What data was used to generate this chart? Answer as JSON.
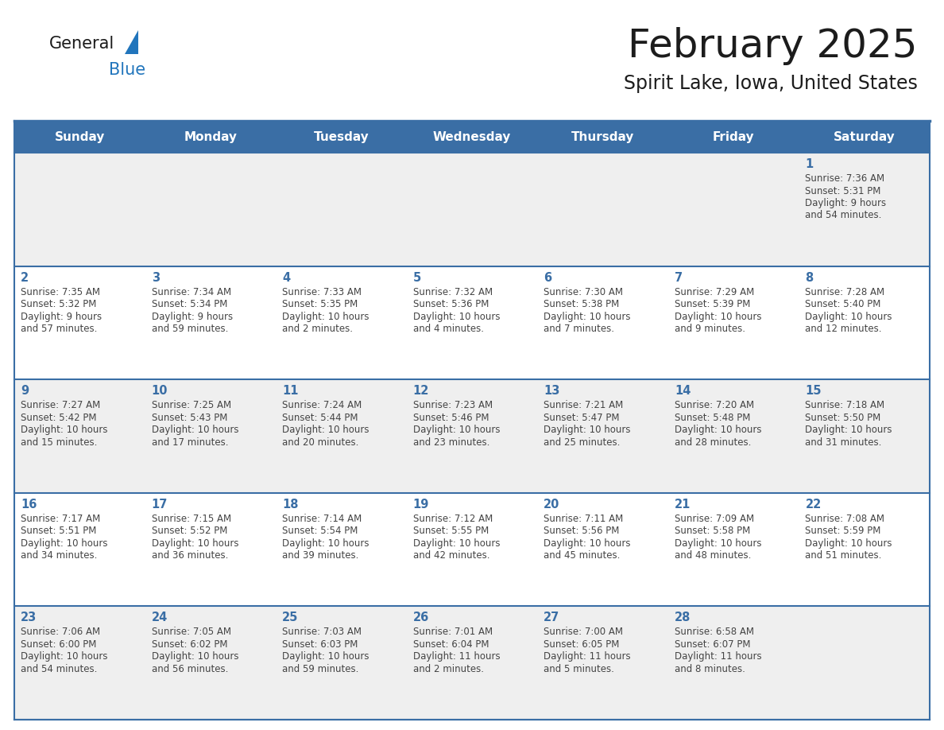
{
  "title": "February 2025",
  "subtitle": "Spirit Lake, Iowa, United States",
  "days_of_week": [
    "Sunday",
    "Monday",
    "Tuesday",
    "Wednesday",
    "Thursday",
    "Friday",
    "Saturday"
  ],
  "header_bg": "#3A6EA5",
  "header_text": "#FFFFFF",
  "cell_bg_odd": "#EFEFEF",
  "cell_bg_even": "#FFFFFF",
  "cell_border": "#3A6EA5",
  "day_num_color": "#3A6EA5",
  "info_color": "#444444",
  "logo_general_color": "#1A1A1A",
  "logo_blue_color": "#2175BC",
  "calendar_data": [
    {
      "day": 1,
      "col": 6,
      "row": 0,
      "sunrise": "7:36 AM",
      "sunset": "5:31 PM",
      "daylight_h": "9 hours",
      "daylight_m": "and 54 minutes."
    },
    {
      "day": 2,
      "col": 0,
      "row": 1,
      "sunrise": "7:35 AM",
      "sunset": "5:32 PM",
      "daylight_h": "9 hours",
      "daylight_m": "and 57 minutes."
    },
    {
      "day": 3,
      "col": 1,
      "row": 1,
      "sunrise": "7:34 AM",
      "sunset": "5:34 PM",
      "daylight_h": "9 hours",
      "daylight_m": "and 59 minutes."
    },
    {
      "day": 4,
      "col": 2,
      "row": 1,
      "sunrise": "7:33 AM",
      "sunset": "5:35 PM",
      "daylight_h": "10 hours",
      "daylight_m": "and 2 minutes."
    },
    {
      "day": 5,
      "col": 3,
      "row": 1,
      "sunrise": "7:32 AM",
      "sunset": "5:36 PM",
      "daylight_h": "10 hours",
      "daylight_m": "and 4 minutes."
    },
    {
      "day": 6,
      "col": 4,
      "row": 1,
      "sunrise": "7:30 AM",
      "sunset": "5:38 PM",
      "daylight_h": "10 hours",
      "daylight_m": "and 7 minutes."
    },
    {
      "day": 7,
      "col": 5,
      "row": 1,
      "sunrise": "7:29 AM",
      "sunset": "5:39 PM",
      "daylight_h": "10 hours",
      "daylight_m": "and 9 minutes."
    },
    {
      "day": 8,
      "col": 6,
      "row": 1,
      "sunrise": "7:28 AM",
      "sunset": "5:40 PM",
      "daylight_h": "10 hours",
      "daylight_m": "and 12 minutes."
    },
    {
      "day": 9,
      "col": 0,
      "row": 2,
      "sunrise": "7:27 AM",
      "sunset": "5:42 PM",
      "daylight_h": "10 hours",
      "daylight_m": "and 15 minutes."
    },
    {
      "day": 10,
      "col": 1,
      "row": 2,
      "sunrise": "7:25 AM",
      "sunset": "5:43 PM",
      "daylight_h": "10 hours",
      "daylight_m": "and 17 minutes."
    },
    {
      "day": 11,
      "col": 2,
      "row": 2,
      "sunrise": "7:24 AM",
      "sunset": "5:44 PM",
      "daylight_h": "10 hours",
      "daylight_m": "and 20 minutes."
    },
    {
      "day": 12,
      "col": 3,
      "row": 2,
      "sunrise": "7:23 AM",
      "sunset": "5:46 PM",
      "daylight_h": "10 hours",
      "daylight_m": "and 23 minutes."
    },
    {
      "day": 13,
      "col": 4,
      "row": 2,
      "sunrise": "7:21 AM",
      "sunset": "5:47 PM",
      "daylight_h": "10 hours",
      "daylight_m": "and 25 minutes."
    },
    {
      "day": 14,
      "col": 5,
      "row": 2,
      "sunrise": "7:20 AM",
      "sunset": "5:48 PM",
      "daylight_h": "10 hours",
      "daylight_m": "and 28 minutes."
    },
    {
      "day": 15,
      "col": 6,
      "row": 2,
      "sunrise": "7:18 AM",
      "sunset": "5:50 PM",
      "daylight_h": "10 hours",
      "daylight_m": "and 31 minutes."
    },
    {
      "day": 16,
      "col": 0,
      "row": 3,
      "sunrise": "7:17 AM",
      "sunset": "5:51 PM",
      "daylight_h": "10 hours",
      "daylight_m": "and 34 minutes."
    },
    {
      "day": 17,
      "col": 1,
      "row": 3,
      "sunrise": "7:15 AM",
      "sunset": "5:52 PM",
      "daylight_h": "10 hours",
      "daylight_m": "and 36 minutes."
    },
    {
      "day": 18,
      "col": 2,
      "row": 3,
      "sunrise": "7:14 AM",
      "sunset": "5:54 PM",
      "daylight_h": "10 hours",
      "daylight_m": "and 39 minutes."
    },
    {
      "day": 19,
      "col": 3,
      "row": 3,
      "sunrise": "7:12 AM",
      "sunset": "5:55 PM",
      "daylight_h": "10 hours",
      "daylight_m": "and 42 minutes."
    },
    {
      "day": 20,
      "col": 4,
      "row": 3,
      "sunrise": "7:11 AM",
      "sunset": "5:56 PM",
      "daylight_h": "10 hours",
      "daylight_m": "and 45 minutes."
    },
    {
      "day": 21,
      "col": 5,
      "row": 3,
      "sunrise": "7:09 AM",
      "sunset": "5:58 PM",
      "daylight_h": "10 hours",
      "daylight_m": "and 48 minutes."
    },
    {
      "day": 22,
      "col": 6,
      "row": 3,
      "sunrise": "7:08 AM",
      "sunset": "5:59 PM",
      "daylight_h": "10 hours",
      "daylight_m": "and 51 minutes."
    },
    {
      "day": 23,
      "col": 0,
      "row": 4,
      "sunrise": "7:06 AM",
      "sunset": "6:00 PM",
      "daylight_h": "10 hours",
      "daylight_m": "and 54 minutes."
    },
    {
      "day": 24,
      "col": 1,
      "row": 4,
      "sunrise": "7:05 AM",
      "sunset": "6:02 PM",
      "daylight_h": "10 hours",
      "daylight_m": "and 56 minutes."
    },
    {
      "day": 25,
      "col": 2,
      "row": 4,
      "sunrise": "7:03 AM",
      "sunset": "6:03 PM",
      "daylight_h": "10 hours",
      "daylight_m": "and 59 minutes."
    },
    {
      "day": 26,
      "col": 3,
      "row": 4,
      "sunrise": "7:01 AM",
      "sunset": "6:04 PM",
      "daylight_h": "11 hours",
      "daylight_m": "and 2 minutes."
    },
    {
      "day": 27,
      "col": 4,
      "row": 4,
      "sunrise": "7:00 AM",
      "sunset": "6:05 PM",
      "daylight_h": "11 hours",
      "daylight_m": "and 5 minutes."
    },
    {
      "day": 28,
      "col": 5,
      "row": 4,
      "sunrise": "6:58 AM",
      "sunset": "6:07 PM",
      "daylight_h": "11 hours",
      "daylight_m": "and 8 minutes."
    }
  ],
  "num_rows": 5,
  "num_cols": 7
}
